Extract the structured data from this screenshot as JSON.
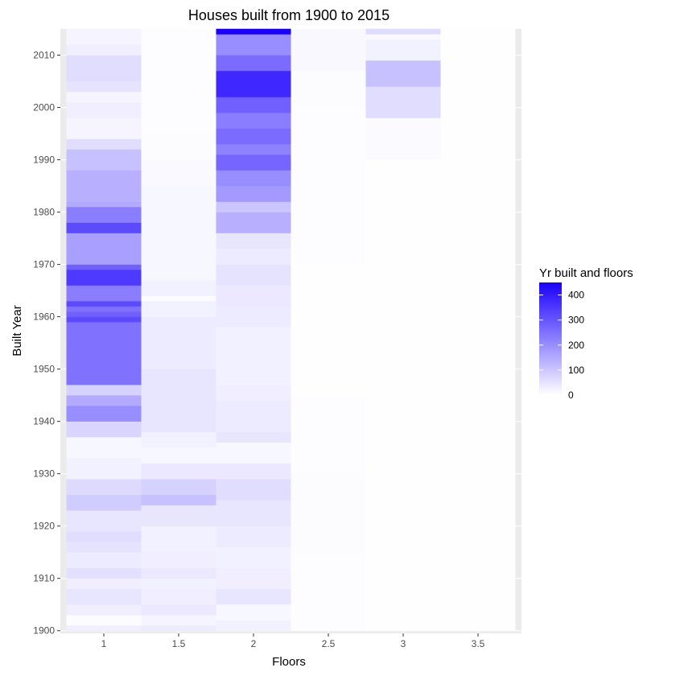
{
  "chart_data": {
    "type": "heatmap",
    "title": "Houses built from 1900 to 2015",
    "xlabel": "Floors",
    "ylabel": "Built Year",
    "x_categories": [
      "1",
      "1.5",
      "2",
      "2.5",
      "3",
      "3.5"
    ],
    "y_ticks": [
      1900,
      1910,
      1920,
      1930,
      1940,
      1950,
      1960,
      1970,
      1980,
      1990,
      2000,
      2010
    ],
    "ylim": [
      1900,
      2015
    ],
    "legend": {
      "title": "Yr built and floors",
      "ticks": [
        0,
        100,
        200,
        300,
        400
      ],
      "max": 450,
      "placement": "right"
    },
    "colors": {
      "low": "#ffffff",
      "high": "#1a00ff",
      "panel_bg": "#ebebeb",
      "grid": "#ffffff"
    },
    "series": [
      {
        "floors": "1",
        "segments": [
          [
            1900,
            1901,
            30
          ],
          [
            1901,
            1903,
            5
          ],
          [
            1903,
            1905,
            30
          ],
          [
            1905,
            1908,
            45
          ],
          [
            1908,
            1910,
            30
          ],
          [
            1910,
            1912,
            55
          ],
          [
            1912,
            1915,
            35
          ],
          [
            1915,
            1917,
            50
          ],
          [
            1917,
            1919,
            60
          ],
          [
            1919,
            1923,
            45
          ],
          [
            1923,
            1926,
            90
          ],
          [
            1926,
            1929,
            65
          ],
          [
            1929,
            1933,
            25
          ],
          [
            1933,
            1937,
            15
          ],
          [
            1937,
            1940,
            75
          ],
          [
            1940,
            1943,
            200
          ],
          [
            1943,
            1945,
            150
          ],
          [
            1945,
            1947,
            80
          ],
          [
            1947,
            1955,
            250
          ],
          [
            1955,
            1957,
            250
          ],
          [
            1957,
            1959,
            250
          ],
          [
            1959,
            1960,
            320
          ],
          [
            1960,
            1961,
            280
          ],
          [
            1961,
            1962,
            250
          ],
          [
            1962,
            1963,
            320
          ],
          [
            1963,
            1966,
            230
          ],
          [
            1966,
            1969,
            350
          ],
          [
            1969,
            1970,
            280
          ],
          [
            1970,
            1976,
            170
          ],
          [
            1976,
            1978,
            320
          ],
          [
            1978,
            1981,
            230
          ],
          [
            1981,
            1982,
            150
          ],
          [
            1982,
            1988,
            140
          ],
          [
            1988,
            1992,
            110
          ],
          [
            1992,
            1994,
            60
          ],
          [
            1994,
            1998,
            20
          ],
          [
            1998,
            2001,
            30
          ],
          [
            2001,
            2003,
            20
          ],
          [
            2003,
            2005,
            50
          ],
          [
            2005,
            2010,
            60
          ],
          [
            2010,
            2012,
            30
          ],
          [
            2012,
            2015,
            20
          ]
        ]
      },
      {
        "floors": "1.5",
        "segments": [
          [
            1900,
            1901,
            35
          ],
          [
            1901,
            1903,
            20
          ],
          [
            1903,
            1905,
            40
          ],
          [
            1905,
            1908,
            30
          ],
          [
            1908,
            1910,
            25
          ],
          [
            1910,
            1912,
            40
          ],
          [
            1912,
            1915,
            30
          ],
          [
            1915,
            1920,
            25
          ],
          [
            1920,
            1924,
            45
          ],
          [
            1924,
            1926,
            110
          ],
          [
            1926,
            1929,
            80
          ],
          [
            1929,
            1932,
            40
          ],
          [
            1932,
            1935,
            15
          ],
          [
            1935,
            1938,
            25
          ],
          [
            1938,
            1944,
            45
          ],
          [
            1944,
            1950,
            45
          ],
          [
            1950,
            1960,
            35
          ],
          [
            1960,
            1963,
            25
          ],
          [
            1963,
            1964,
            5
          ],
          [
            1964,
            1967,
            25
          ],
          [
            1967,
            1972,
            15
          ],
          [
            1972,
            1980,
            15
          ],
          [
            1980,
            1985,
            15
          ],
          [
            1985,
            1990,
            10
          ],
          [
            1990,
            1995,
            5
          ],
          [
            1995,
            2015,
            3
          ]
        ]
      },
      {
        "floors": "2",
        "segments": [
          [
            1900,
            1902,
            25
          ],
          [
            1902,
            1905,
            15
          ],
          [
            1905,
            1908,
            45
          ],
          [
            1908,
            1912,
            30
          ],
          [
            1912,
            1916,
            25
          ],
          [
            1916,
            1920,
            35
          ],
          [
            1920,
            1925,
            45
          ],
          [
            1925,
            1929,
            60
          ],
          [
            1929,
            1932,
            40
          ],
          [
            1932,
            1936,
            15
          ],
          [
            1936,
            1938,
            45
          ],
          [
            1938,
            1944,
            35
          ],
          [
            1944,
            1947,
            30
          ],
          [
            1947,
            1958,
            25
          ],
          [
            1958,
            1962,
            35
          ],
          [
            1962,
            1966,
            40
          ],
          [
            1966,
            1970,
            50
          ],
          [
            1970,
            1973,
            35
          ],
          [
            1973,
            1976,
            45
          ],
          [
            1976,
            1980,
            140
          ],
          [
            1980,
            1982,
            100
          ],
          [
            1982,
            1985,
            180
          ],
          [
            1985,
            1988,
            200
          ],
          [
            1988,
            1991,
            270
          ],
          [
            1991,
            1993,
            220
          ],
          [
            1993,
            1996,
            260
          ],
          [
            1996,
            1999,
            230
          ],
          [
            1999,
            2002,
            280
          ],
          [
            2002,
            2007,
            380
          ],
          [
            2007,
            2010,
            260
          ],
          [
            2010,
            2014,
            200
          ],
          [
            2014,
            2015,
            450
          ]
        ]
      },
      {
        "floors": "2.5",
        "segments": [
          [
            1900,
            1915,
            4
          ],
          [
            1915,
            1930,
            6
          ],
          [
            1930,
            1945,
            3
          ],
          [
            1945,
            1970,
            2
          ],
          [
            1970,
            1985,
            3
          ],
          [
            1985,
            2000,
            4
          ],
          [
            2000,
            2007,
            5
          ],
          [
            2007,
            2015,
            12
          ]
        ]
      },
      {
        "floors": "3",
        "segments": [
          [
            1900,
            1990,
            2
          ],
          [
            1990,
            1998,
            8
          ],
          [
            1998,
            2004,
            60
          ],
          [
            2004,
            2009,
            110
          ],
          [
            2009,
            2013,
            25
          ],
          [
            2013,
            2014,
            10
          ],
          [
            2014,
            2015,
            60
          ]
        ]
      },
      {
        "floors": "3.5",
        "segments": [
          [
            1900,
            2015,
            2
          ]
        ]
      }
    ]
  }
}
